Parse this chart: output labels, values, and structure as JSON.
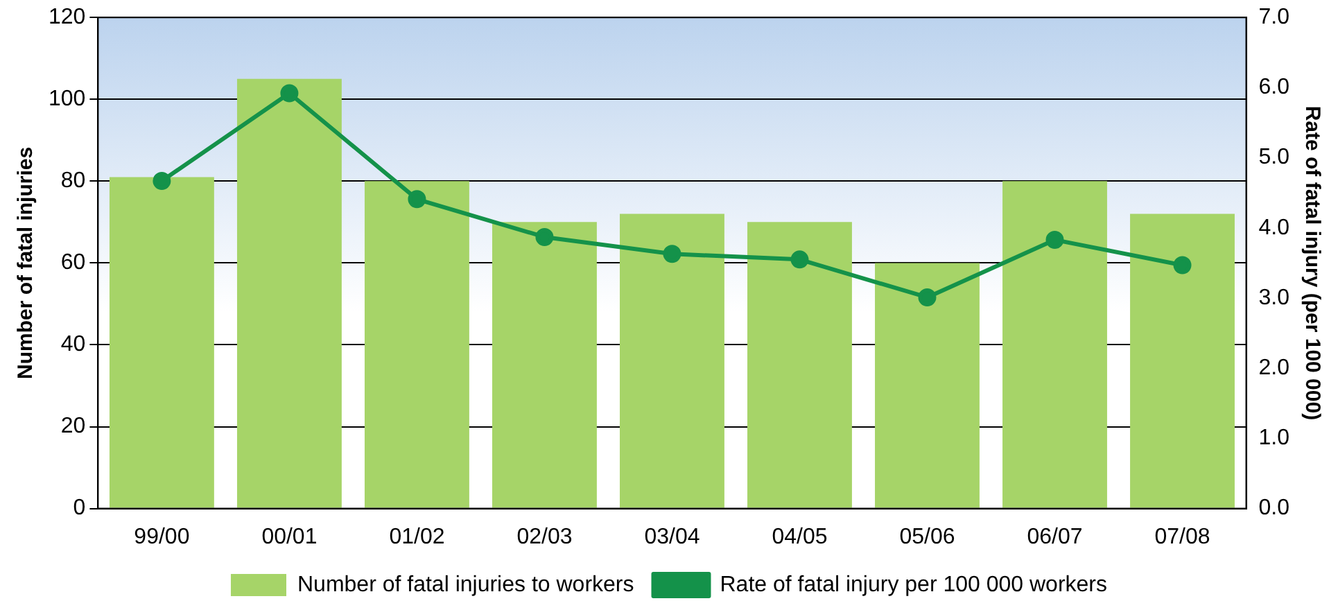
{
  "chart_data": {
    "type": "bar",
    "categories": [
      "99/00",
      "00/01",
      "01/02",
      "02/03",
      "03/04",
      "04/05",
      "05/06",
      "06/07",
      "07/08"
    ],
    "ylabel": "Number of fatal injuries",
    "y2label": "Rate of fatal injury (per 100 000)",
    "ylim": [
      0,
      120
    ],
    "yticks": [
      0,
      20,
      40,
      60,
      80,
      100,
      120
    ],
    "y2lim": [
      0,
      7
    ],
    "y2ticks": [
      {
        "value": 0,
        "label": "0.0"
      },
      {
        "value": 1,
        "label": "1.0"
      },
      {
        "value": 2,
        "label": "2.0"
      },
      {
        "value": 3,
        "label": "3.0"
      },
      {
        "value": 4,
        "label": "4.0"
      },
      {
        "value": 5,
        "label": "5.0"
      },
      {
        "value": 6,
        "label": "6.0"
      },
      {
        "value": 7,
        "label": "7.0"
      }
    ],
    "grid": "y",
    "legend": "bottom",
    "marker": "circle",
    "line_style": "solid",
    "series": [
      {
        "name": "Number of fatal injuries to workers",
        "color": "#a6d468",
        "values": [
          81,
          105,
          80,
          70,
          72,
          70,
          60,
          80,
          72
        ]
      },
      {
        "name": "Rate of fatal injury per 100 000 workers",
        "type": "line",
        "axis": "y2",
        "color": "#14924a",
        "values": [
          4.67,
          5.92,
          4.41,
          3.87,
          3.63,
          3.55,
          3.01,
          3.83,
          3.47
        ]
      }
    ]
  }
}
